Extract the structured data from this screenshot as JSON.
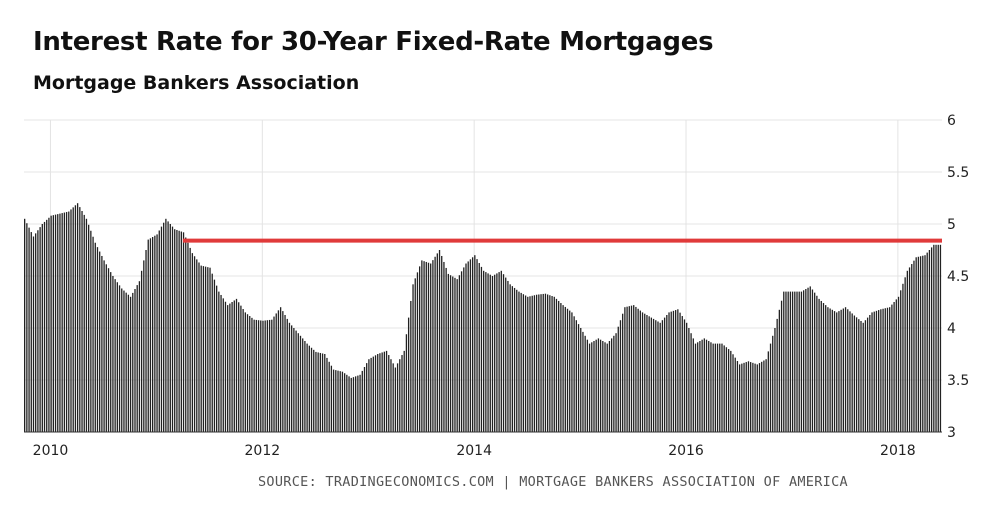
{
  "chart_data": {
    "type": "bar",
    "title": "Interest Rate for 30-Year Fixed-Rate Mortgages",
    "subtitle": "Mortgage Bankers Association",
    "source": "SOURCE: TRADINGECONOMICS.COM | MORTGAGE BANKERS ASSOCIATION OF AMERICA",
    "xlabel": "",
    "ylabel": "",
    "x_ticks": [
      "2010",
      "2012",
      "2014",
      "2016",
      "2018"
    ],
    "y_ticks": [
      "3",
      "3.5",
      "4",
      "4.5",
      "5",
      "5.5",
      "6"
    ],
    "ylim": [
      3,
      6
    ],
    "xlim": [
      "2009-10",
      "2018-05"
    ],
    "grid": true,
    "reference_line": {
      "value": 4.84,
      "start": "2011-04",
      "end": "2018-05",
      "color": "#e03a3a"
    },
    "bar_color": "#222222",
    "monthly": [
      {
        "x": "2009-10",
        "y": 5.05
      },
      {
        "x": "2009-11",
        "y": 4.88
      },
      {
        "x": "2009-12",
        "y": 5.0
      },
      {
        "x": "2010-01",
        "y": 5.08
      },
      {
        "x": "2010-02",
        "y": 5.1
      },
      {
        "x": "2010-03",
        "y": 5.12
      },
      {
        "x": "2010-04",
        "y": 5.2
      },
      {
        "x": "2010-05",
        "y": 5.05
      },
      {
        "x": "2010-06",
        "y": 4.82
      },
      {
        "x": "2010-07",
        "y": 4.65
      },
      {
        "x": "2010-08",
        "y": 4.5
      },
      {
        "x": "2010-09",
        "y": 4.38
      },
      {
        "x": "2010-10",
        "y": 4.3
      },
      {
        "x": "2010-11",
        "y": 4.45
      },
      {
        "x": "2010-12",
        "y": 4.85
      },
      {
        "x": "2011-01",
        "y": 4.9
      },
      {
        "x": "2011-02",
        "y": 5.05
      },
      {
        "x": "2011-03",
        "y": 4.95
      },
      {
        "x": "2011-04",
        "y": 4.92
      },
      {
        "x": "2011-05",
        "y": 4.72
      },
      {
        "x": "2011-06",
        "y": 4.6
      },
      {
        "x": "2011-07",
        "y": 4.58
      },
      {
        "x": "2011-08",
        "y": 4.35
      },
      {
        "x": "2011-09",
        "y": 4.22
      },
      {
        "x": "2011-10",
        "y": 4.28
      },
      {
        "x": "2011-11",
        "y": 4.15
      },
      {
        "x": "2011-12",
        "y": 4.08
      },
      {
        "x": "2012-01",
        "y": 4.07
      },
      {
        "x": "2012-02",
        "y": 4.08
      },
      {
        "x": "2012-03",
        "y": 4.2
      },
      {
        "x": "2012-04",
        "y": 4.05
      },
      {
        "x": "2012-05",
        "y": 3.95
      },
      {
        "x": "2012-06",
        "y": 3.85
      },
      {
        "x": "2012-07",
        "y": 3.77
      },
      {
        "x": "2012-08",
        "y": 3.75
      },
      {
        "x": "2012-09",
        "y": 3.6
      },
      {
        "x": "2012-10",
        "y": 3.58
      },
      {
        "x": "2012-11",
        "y": 3.52
      },
      {
        "x": "2012-12",
        "y": 3.55
      },
      {
        "x": "2013-01",
        "y": 3.7
      },
      {
        "x": "2013-02",
        "y": 3.75
      },
      {
        "x": "2013-03",
        "y": 3.78
      },
      {
        "x": "2013-04",
        "y": 3.62
      },
      {
        "x": "2013-05",
        "y": 3.78
      },
      {
        "x": "2013-06",
        "y": 4.42
      },
      {
        "x": "2013-07",
        "y": 4.65
      },
      {
        "x": "2013-08",
        "y": 4.62
      },
      {
        "x": "2013-09",
        "y": 4.75
      },
      {
        "x": "2013-10",
        "y": 4.52
      },
      {
        "x": "2013-11",
        "y": 4.47
      },
      {
        "x": "2013-12",
        "y": 4.62
      },
      {
        "x": "2014-01",
        "y": 4.7
      },
      {
        "x": "2014-02",
        "y": 4.55
      },
      {
        "x": "2014-03",
        "y": 4.5
      },
      {
        "x": "2014-04",
        "y": 4.55
      },
      {
        "x": "2014-05",
        "y": 4.42
      },
      {
        "x": "2014-06",
        "y": 4.35
      },
      {
        "x": "2014-07",
        "y": 4.3
      },
      {
        "x": "2014-08",
        "y": 4.32
      },
      {
        "x": "2014-09",
        "y": 4.33
      },
      {
        "x": "2014-10",
        "y": 4.3
      },
      {
        "x": "2014-11",
        "y": 4.22
      },
      {
        "x": "2014-12",
        "y": 4.15
      },
      {
        "x": "2015-01",
        "y": 4.0
      },
      {
        "x": "2015-02",
        "y": 3.85
      },
      {
        "x": "2015-03",
        "y": 3.9
      },
      {
        "x": "2015-04",
        "y": 3.85
      },
      {
        "x": "2015-05",
        "y": 3.95
      },
      {
        "x": "2015-06",
        "y": 4.2
      },
      {
        "x": "2015-07",
        "y": 4.22
      },
      {
        "x": "2015-08",
        "y": 4.15
      },
      {
        "x": "2015-09",
        "y": 4.1
      },
      {
        "x": "2015-10",
        "y": 4.05
      },
      {
        "x": "2015-11",
        "y": 4.15
      },
      {
        "x": "2015-12",
        "y": 4.18
      },
      {
        "x": "2016-01",
        "y": 4.05
      },
      {
        "x": "2016-02",
        "y": 3.85
      },
      {
        "x": "2016-03",
        "y": 3.9
      },
      {
        "x": "2016-04",
        "y": 3.85
      },
      {
        "x": "2016-05",
        "y": 3.85
      },
      {
        "x": "2016-06",
        "y": 3.78
      },
      {
        "x": "2016-07",
        "y": 3.65
      },
      {
        "x": "2016-08",
        "y": 3.68
      },
      {
        "x": "2016-09",
        "y": 3.65
      },
      {
        "x": "2016-10",
        "y": 3.7
      },
      {
        "x": "2016-11",
        "y": 4.0
      },
      {
        "x": "2016-12",
        "y": 4.35
      },
      {
        "x": "2017-01",
        "y": 4.35
      },
      {
        "x": "2017-02",
        "y": 4.35
      },
      {
        "x": "2017-03",
        "y": 4.4
      },
      {
        "x": "2017-04",
        "y": 4.28
      },
      {
        "x": "2017-05",
        "y": 4.2
      },
      {
        "x": "2017-06",
        "y": 4.15
      },
      {
        "x": "2017-07",
        "y": 4.2
      },
      {
        "x": "2017-08",
        "y": 4.12
      },
      {
        "x": "2017-09",
        "y": 4.05
      },
      {
        "x": "2017-10",
        "y": 4.15
      },
      {
        "x": "2017-11",
        "y": 4.18
      },
      {
        "x": "2017-12",
        "y": 4.2
      },
      {
        "x": "2018-01",
        "y": 4.3
      },
      {
        "x": "2018-02",
        "y": 4.55
      },
      {
        "x": "2018-03",
        "y": 4.68
      },
      {
        "x": "2018-04",
        "y": 4.7
      },
      {
        "x": "2018-05",
        "y": 4.8
      }
    ]
  }
}
